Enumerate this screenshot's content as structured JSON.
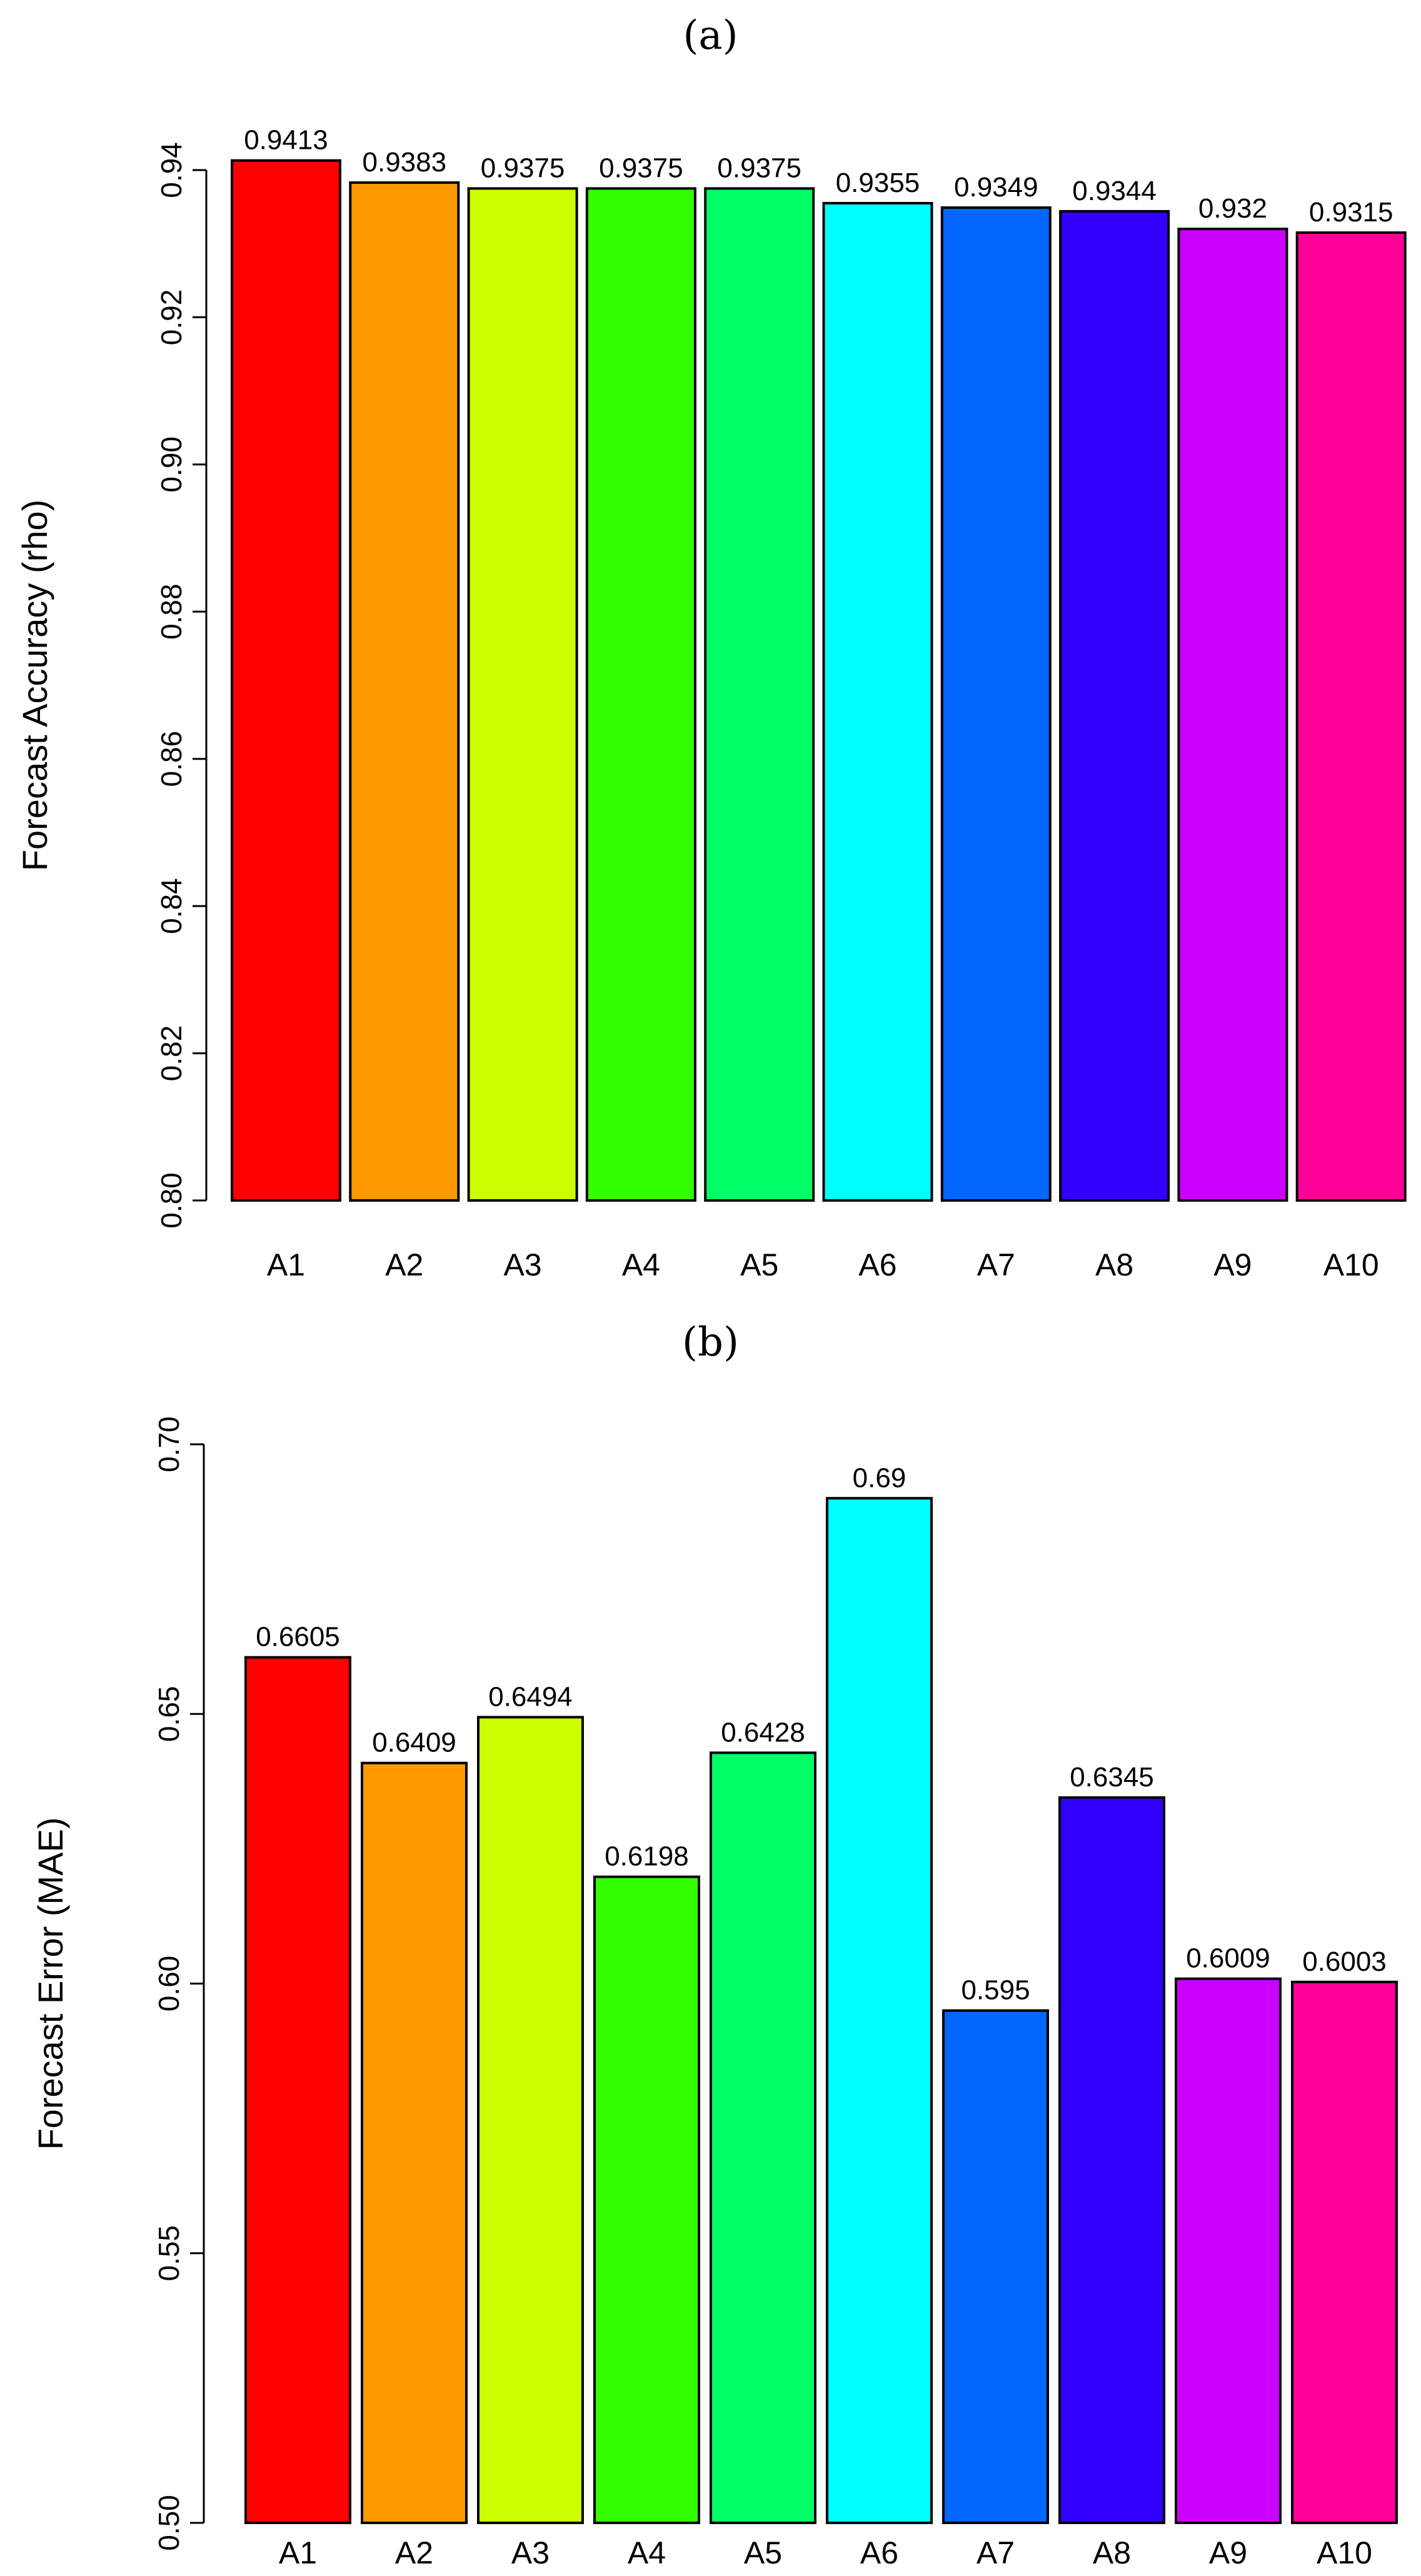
{
  "panels": [
    {
      "title": "(a)"
    },
    {
      "title": "(b)"
    }
  ],
  "chart_data": [
    {
      "type": "bar",
      "panel": "(a)",
      "ylabel": "Forecast Accuracy (rho)",
      "xlabel": "",
      "categories": [
        "A1",
        "A2",
        "A3",
        "A4",
        "A5",
        "A6",
        "A7",
        "A8",
        "A9",
        "A10"
      ],
      "values": [
        0.9413,
        0.9383,
        0.9375,
        0.9375,
        0.9375,
        0.9355,
        0.9349,
        0.9344,
        0.932,
        0.9315
      ],
      "value_labels": [
        "0.9413",
        "0.9383",
        "0.9375",
        "0.9375",
        "0.9375",
        "0.9355",
        "0.9349",
        "0.9344",
        "0.932",
        "0.9315"
      ],
      "ylim": [
        0.8,
        0.94
      ],
      "yticks": [
        0.8,
        0.82,
        0.84,
        0.86,
        0.88,
        0.9,
        0.92,
        0.94
      ],
      "ytick_labels": [
        "0.80",
        "0.82",
        "0.84",
        "0.86",
        "0.88",
        "0.90",
        "0.92",
        "0.94"
      ],
      "colors": [
        "#FF0000",
        "#FF9900",
        "#CCFF00",
        "#33FF00",
        "#00FF66",
        "#00FFFF",
        "#0066FF",
        "#3300FF",
        "#CC00FF",
        "#FF0099"
      ],
      "grid": false
    },
    {
      "type": "bar",
      "panel": "(b)",
      "ylabel": "Forecast Error (MAE)",
      "xlabel": "",
      "categories": [
        "A1",
        "A2",
        "A3",
        "A4",
        "A5",
        "A6",
        "A7",
        "A8",
        "A9",
        "A10"
      ],
      "values": [
        0.6605,
        0.6409,
        0.6494,
        0.6198,
        0.6428,
        0.69,
        0.595,
        0.6345,
        0.6009,
        0.6003
      ],
      "value_labels": [
        "0.6605",
        "0.6409",
        "0.6494",
        "0.6198",
        "0.6428",
        "0.69",
        "0.595",
        "0.6345",
        "0.6009",
        "0.6003"
      ],
      "ylim": [
        0.5,
        0.7
      ],
      "yticks": [
        0.5,
        0.55,
        0.6,
        0.65,
        0.7
      ],
      "ytick_labels": [
        "0.50",
        "0.55",
        "0.60",
        "0.65",
        "0.70"
      ],
      "colors": [
        "#FF0000",
        "#FF9900",
        "#CCFF00",
        "#33FF00",
        "#00FF66",
        "#00FFFF",
        "#0066FF",
        "#3300FF",
        "#CC00FF",
        "#FF0099"
      ],
      "grid": false
    }
  ]
}
